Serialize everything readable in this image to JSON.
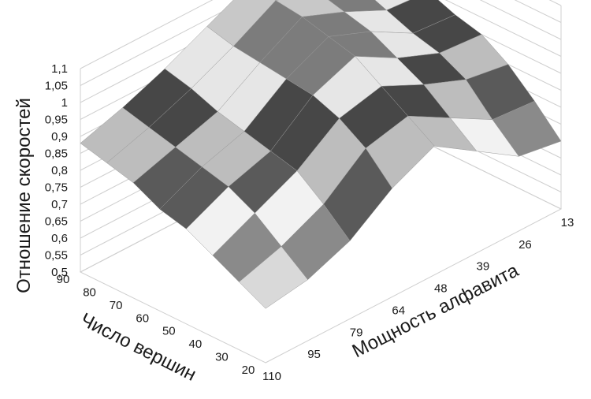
{
  "chart_data": {
    "type": "surface",
    "zlabel": "Отношение скоростей",
    "xlabel": "Мощность алфавита",
    "ylabel": "Число вершин",
    "z_ticks": [
      "0,5",
      "0,55",
      "0,6",
      "0,65",
      "0,7",
      "0,75",
      "0,8",
      "0,85",
      "0,9",
      "0,95",
      "1",
      "1,05",
      "1,1"
    ],
    "zlim": [
      0.5,
      1.1
    ],
    "alphabet_ticks": [
      "13",
      "26",
      "39",
      "48",
      "64",
      "79",
      "95",
      "110"
    ],
    "vertex_ticks": [
      "20",
      "30",
      "40",
      "50",
      "60",
      "70",
      "80",
      "90"
    ],
    "alphabet_values": [
      13,
      26,
      39,
      48,
      64,
      79,
      95,
      110
    ],
    "vertex_values": [
      20,
      30,
      40,
      50,
      60,
      70,
      80,
      90
    ],
    "band_step": 0.05,
    "band_colors": [
      "#2b2b2b",
      "#6e6e6e",
      "#a9a9a9",
      "#d9d9d9",
      "#8a8a8a",
      "#f2f2f2",
      "#5a5a5a",
      "#bdbdbd",
      "#474747",
      "#e6e6e6",
      "#7c7c7c",
      "#c8c8c8"
    ],
    "grid": true,
    "z_matrix": [
      [
        0.7,
        0.72,
        0.8,
        0.88,
        0.82,
        0.73,
        0.68,
        0.66
      ],
      [
        0.78,
        0.79,
        0.86,
        0.93,
        0.9,
        0.8,
        0.74,
        0.7
      ],
      [
        0.85,
        0.87,
        0.92,
        0.98,
        0.95,
        0.86,
        0.8,
        0.74
      ],
      [
        0.9,
        0.91,
        0.96,
        1.03,
        0.98,
        0.88,
        0.84,
        0.78
      ],
      [
        0.92,
        0.93,
        1.0,
        1.05,
        0.99,
        0.9,
        0.86,
        0.8
      ],
      [
        0.95,
        0.96,
        1.02,
        1.07,
        1.0,
        0.92,
        0.88,
        0.84
      ],
      [
        0.97,
        0.99,
        1.04,
        1.08,
        1.01,
        0.95,
        0.9,
        0.86
      ],
      [
        0.99,
        1.0,
        1.05,
        1.09,
        1.03,
        0.97,
        0.92,
        0.88
      ]
    ]
  }
}
